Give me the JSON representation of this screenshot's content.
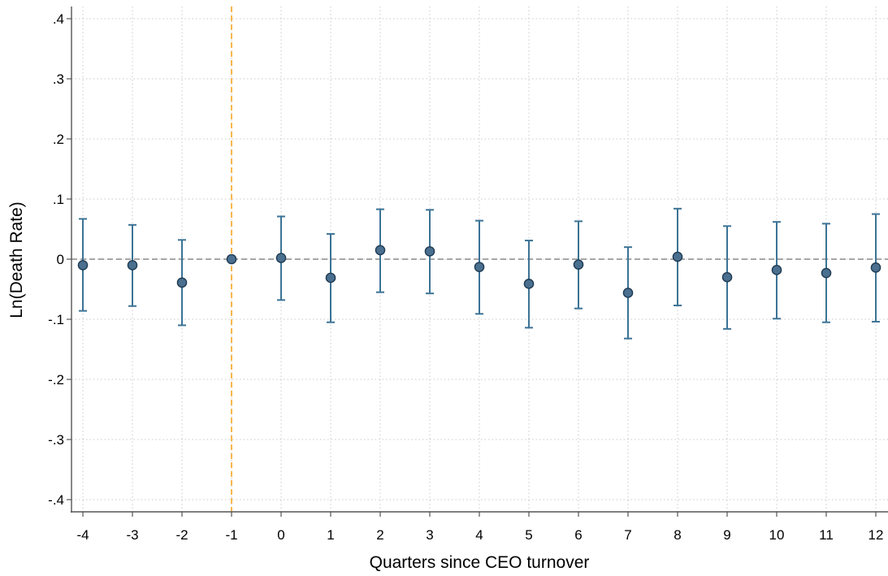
{
  "chart_data": {
    "type": "scatter",
    "subtype": "coefficient-plot-with-error-bars",
    "xlabel": "Quarters since CEO turnover",
    "ylabel": "Ln(Death Rate)",
    "x_ticks": [
      -4,
      -3,
      -2,
      -1,
      0,
      1,
      2,
      3,
      4,
      5,
      6,
      7,
      8,
      9,
      10,
      11,
      12
    ],
    "y_ticks": [
      {
        "value": 0.4,
        "label": ".4"
      },
      {
        "value": 0.3,
        "label": ".3"
      },
      {
        "value": 0.2,
        "label": ".2"
      },
      {
        "value": 0.1,
        "label": ".1"
      },
      {
        "value": 0.0,
        "label": "0"
      },
      {
        "value": -0.1,
        "label": "-.1"
      },
      {
        "value": -0.2,
        "label": "-.2"
      },
      {
        "value": -0.3,
        "label": "-.3"
      },
      {
        "value": -0.4,
        "label": "-.4"
      }
    ],
    "xlim": [
      -4,
      12
    ],
    "ylim": [
      -0.42,
      0.42
    ],
    "grid": true,
    "reference_lines": [
      {
        "axis": "y",
        "value": 0,
        "style": "dashed",
        "color": "#8a8a8a"
      },
      {
        "axis": "x",
        "value": -1,
        "style": "dashed",
        "color": "#f5a623"
      }
    ],
    "series": [
      {
        "color": "#3c7396",
        "marker_fill": "#4a6f8f",
        "points": [
          {
            "x": -4,
            "y": -0.01,
            "lo": -0.086,
            "hi": 0.067
          },
          {
            "x": -3,
            "y": -0.01,
            "lo": -0.078,
            "hi": 0.057
          },
          {
            "x": -2,
            "y": -0.039,
            "lo": -0.11,
            "hi": 0.032
          },
          {
            "x": -1,
            "y": 0.0,
            "lo": 0.0,
            "hi": 0.0
          },
          {
            "x": 0,
            "y": 0.002,
            "lo": -0.068,
            "hi": 0.071
          },
          {
            "x": 1,
            "y": -0.031,
            "lo": -0.105,
            "hi": 0.042
          },
          {
            "x": 2,
            "y": 0.015,
            "lo": -0.055,
            "hi": 0.083
          },
          {
            "x": 3,
            "y": 0.013,
            "lo": -0.057,
            "hi": 0.082
          },
          {
            "x": 4,
            "y": -0.013,
            "lo": -0.091,
            "hi": 0.064
          },
          {
            "x": 5,
            "y": -0.041,
            "lo": -0.114,
            "hi": 0.031
          },
          {
            "x": 6,
            "y": -0.009,
            "lo": -0.082,
            "hi": 0.063
          },
          {
            "x": 7,
            "y": -0.056,
            "lo": -0.132,
            "hi": 0.02
          },
          {
            "x": 8,
            "y": 0.004,
            "lo": -0.077,
            "hi": 0.084
          },
          {
            "x": 9,
            "y": -0.03,
            "lo": -0.116,
            "hi": 0.055
          },
          {
            "x": 10,
            "y": -0.018,
            "lo": -0.099,
            "hi": 0.062
          },
          {
            "x": 11,
            "y": -0.023,
            "lo": -0.105,
            "hi": 0.059
          },
          {
            "x": 12,
            "y": -0.014,
            "lo": -0.104,
            "hi": 0.075
          }
        ]
      }
    ]
  }
}
